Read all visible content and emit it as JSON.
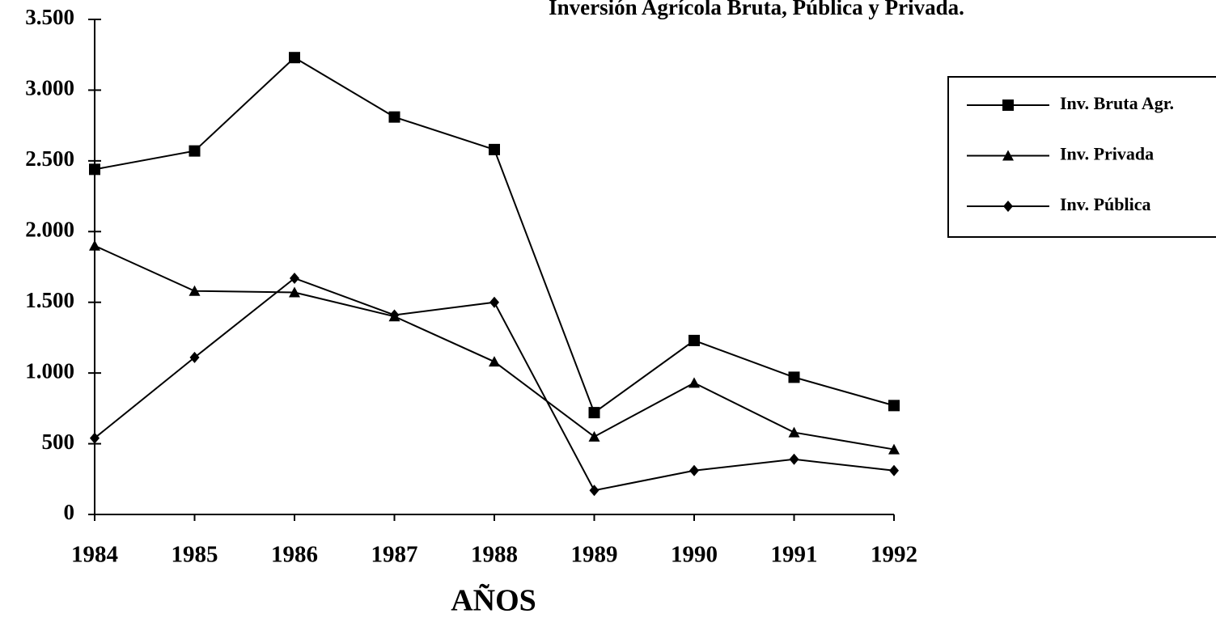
{
  "chart_data": {
    "type": "line",
    "title": "Inversión Agrícola Bruta, Pública y Privada.",
    "x_label": "AÑOS",
    "categories": [
      "1984",
      "1985",
      "1986",
      "1987",
      "1988",
      "1989",
      "1990",
      "1991",
      "1992"
    ],
    "series": [
      {
        "name": "Inv. Bruta Agr.",
        "color": "#000000",
        "marker": "square",
        "values": [
          2440,
          2570,
          3230,
          2810,
          2580,
          720,
          1230,
          970,
          770
        ]
      },
      {
        "name": "Inv. Privada",
        "color": "#000000",
        "marker": "triangle",
        "values": [
          1900,
          1580,
          1570,
          1400,
          1080,
          550,
          930,
          580,
          460
        ]
      },
      {
        "name": "Inv. Pública",
        "color": "#000000",
        "marker": "diamond",
        "values": [
          540,
          1110,
          1670,
          1410,
          1500,
          170,
          310,
          390,
          310
        ]
      }
    ],
    "ylim": [
      0,
      3500
    ],
    "yticks": [
      0,
      500,
      {
        "value": 1000,
        "label": "1.000"
      },
      {
        "value": 1500,
        "label": "1.500"
      },
      {
        "value": 2000,
        "label": "2.000"
      },
      {
        "value": 2500,
        "label": "2.500"
      },
      {
        "value": 3000,
        "label": "3.000"
      },
      {
        "value": 3500,
        "label": "3.500"
      }
    ],
    "legend": "right"
  }
}
